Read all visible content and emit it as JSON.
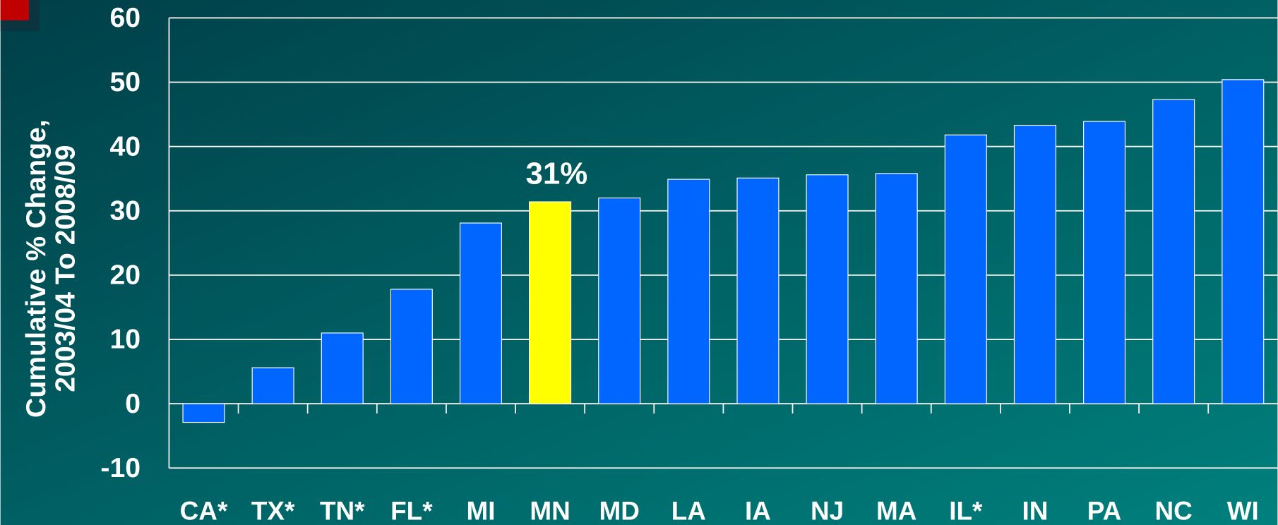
{
  "chart_data": {
    "type": "bar",
    "y_label": [
      "Cumulative % Change,",
      "2003/04 To 2008/09"
    ],
    "categories": [
      "CA*",
      "TX*",
      "TN*",
      "FL*",
      "MI",
      "MN",
      "MD",
      "LA",
      "IA",
      "NJ",
      "MA",
      "IL*",
      "IN",
      "PA",
      "NC",
      "WI"
    ],
    "values": [
      -2.9,
      5.6,
      11,
      17.8,
      28.1,
      31.4,
      32,
      34.9,
      35.1,
      35.6,
      35.8,
      41.8,
      43.3,
      43.9,
      47.3,
      50.4
    ],
    "value_labels": [
      null,
      null,
      null,
      null,
      null,
      "31%",
      null,
      null,
      null,
      null,
      null,
      null,
      null,
      null,
      null,
      null
    ],
    "colors": [
      "#0066ff",
      "#0066ff",
      "#0066ff",
      "#0066ff",
      "#0066ff",
      "#ffff00",
      "#0066ff",
      "#0066ff",
      "#0066ff",
      "#0066ff",
      "#0066ff",
      "#0066ff",
      "#0066ff",
      "#0066ff",
      "#0066ff",
      "#0066ff"
    ],
    "ylim": [
      -10,
      60
    ],
    "yticks": [
      -10,
      0,
      10,
      20,
      30,
      40,
      50,
      60
    ],
    "grid": true
  }
}
